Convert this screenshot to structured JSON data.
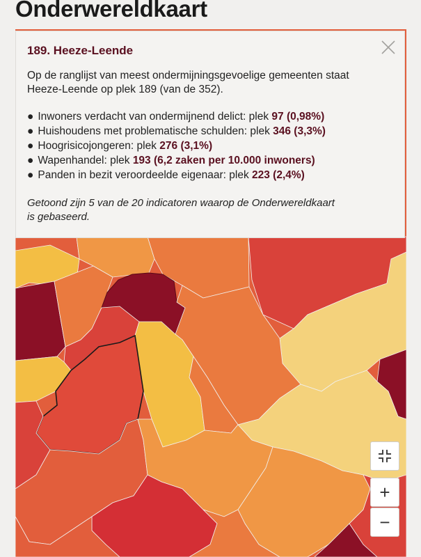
{
  "page": {
    "title": "Onderwereldkaart"
  },
  "popup": {
    "title": "189. Heeze-Leende",
    "intro_line1": "Op de ranglijst van meest ondermijningsgevoelige gemeenten staat",
    "intro_line2": "Heeze-Leende op plek 189 (van de 352).",
    "indicators": [
      {
        "label": "Inwoners verdacht van ondermijnend delict: plek ",
        "value": "97 (0,98%)"
      },
      {
        "label": "Huishoudens met problematische schulden: plek ",
        "value": "346 (3,3%)"
      },
      {
        "label": "Hoogrisicojongeren: plek ",
        "value": "276 (3,1%)"
      },
      {
        "label": "Wapenhandel: plek ",
        "value": "193 (6,2 zaken per 10.000 inwoners)"
      },
      {
        "label": "Panden in bezit veroordeelde eigenaar: plek ",
        "value": "223 (2,4%)"
      }
    ],
    "note_line1": "Getoond zijn 5 van de 20 indicatoren waarop de Onderwereldkaart",
    "note_line2": "is gebaseerd.",
    "close_icon": "close-icon"
  },
  "map_controls": {
    "fullscreen_icon": "collapse-fullscreen-icon",
    "zoom_in": "+",
    "zoom_out": "−"
  },
  "map_colors": {
    "darkred": "#8b1026",
    "red": "#d9423a",
    "redorange": "#e25e3c",
    "orange": "#ea7a3f",
    "lightorange": "#f09745",
    "yellow": "#f3be44",
    "paleyellow": "#f4d27c"
  }
}
